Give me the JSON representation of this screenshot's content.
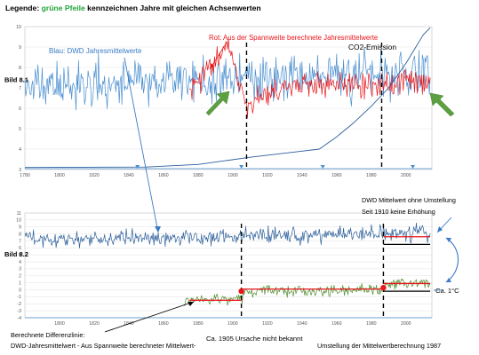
{
  "legend": {
    "prefix": "Legende:",
    "highlight": "grüne Pfeile",
    "rest": "kennzeichnen Jahre mit gleichen Achsenwerten"
  },
  "colors": {
    "blue": "#4a8fd0",
    "dark_blue": "#2c5f9a",
    "red": "#e8161b",
    "green": "#4e8f2e",
    "arrow_green": "#5ca042",
    "black": "#000000",
    "grid": "#d9d9d9",
    "annot_blue": "#3a7bc6"
  },
  "chart_data": [
    {
      "name_label": "Bild 8.1",
      "type": "line",
      "xlim": [
        1780,
        2015
      ],
      "ylim": [
        3,
        10
      ],
      "x_ticks": [
        1780,
        1800,
        1820,
        1840,
        1860,
        1880,
        1900,
        1920,
        1940,
        1960,
        1980,
        2000
      ],
      "y_ticks": [
        3,
        4,
        5,
        6,
        7,
        8,
        9,
        10
      ],
      "annotations": {
        "blue": "Blau: DWD Jahresmittelwerte",
        "red": "Rot: Aus der Spannweite berechnete Jahresmittelwerte",
        "co2": "CO2-Emission"
      },
      "dashed_lines_x": [
        1908,
        1986
      ],
      "green_arrows": [
        "left",
        "right"
      ],
      "series": [
        {
          "name": "Blau: DWD Jahresmittelwerte",
          "color": "#4a8fd0",
          "start": 1780,
          "end": 2014,
          "mean": 7.05,
          "trend": 0.0032,
          "amp": 0.78,
          "seed": 11
        },
        {
          "name": "Rot: Aus der Spannweite berechnete Jahresmittelwerte",
          "color": "#e8161b",
          "start": 1875,
          "end": 2014,
          "mean": 7.1,
          "trend": 0.0,
          "amp": 0.45,
          "seed": 23,
          "shape": [
            [
              1875,
              6.7
            ],
            [
              1885,
              7.9
            ],
            [
              1890,
              8.2
            ],
            [
              1897,
              9.2
            ],
            [
              1905,
              7.3
            ],
            [
              1908,
              6.0
            ],
            [
              1915,
              6.4
            ],
            [
              1930,
              7.1
            ],
            [
              1960,
              7.3
            ],
            [
              1986,
              7.0
            ],
            [
              2000,
              7.4
            ],
            [
              2014,
              7.3
            ]
          ]
        },
        {
          "name": "CO2-Emission",
          "color": "#2c5f9a",
          "points": [
            [
              1780,
              3.1
            ],
            [
              1850,
              3.12
            ],
            [
              1880,
              3.25
            ],
            [
              1910,
              3.6
            ],
            [
              1940,
              3.9
            ],
            [
              1950,
              4.0
            ],
            [
              1960,
              4.6
            ],
            [
              1970,
              5.3
            ],
            [
              1980,
              6.1
            ],
            [
              1990,
              7.0
            ],
            [
              2000,
              8.2
            ],
            [
              2010,
              9.6
            ],
            [
              2014,
              9.95
            ]
          ]
        }
      ]
    },
    {
      "name_label": "Bild 8.2",
      "type": "line",
      "xlim": [
        1780,
        2015
      ],
      "ylim": [
        -4,
        11
      ],
      "x_ticks": [
        1800,
        1820,
        1840,
        1860,
        1880,
        1900,
        1920,
        1940,
        1960,
        1980,
        2000
      ],
      "y_ticks": [
        11,
        10,
        9,
        8,
        7,
        6,
        5,
        4,
        3,
        2,
        1,
        0,
        -1,
        -2,
        -3,
        -4
      ],
      "annotations": {
        "dwd_line1": "DWD Mittelwert ohne Umstellung",
        "dwd_line2": "Seit 1910 keine Erhöhung",
        "ca1c": "Ca. 1°C",
        "diff1": "Berechnete Differenzlinie:",
        "diff2": "DWD-Jahresmittelwert - Aus Spannweite berechneter Mittelwert-",
        "ca1905": "Ca. 1905 Ursache nicht bekannt",
        "umstellung": "Umstellung der Mittelwertberechnung 1987"
      },
      "dashed_lines_x": [
        1905,
        1987
      ],
      "series": [
        {
          "name": "DWD Jahresmittelwert",
          "color": "#2c5f9a",
          "start": 1780,
          "end": 2014,
          "mean": 7.2,
          "trend": 0.0035,
          "amp": 0.8,
          "seed": 37
        },
        {
          "name": "Differenzlinie",
          "color": "#4e8f2e",
          "start": 1872,
          "end": 2014,
          "mean": -0.3,
          "trend": 0.0,
          "amp": 0.55,
          "seed": 51,
          "shape": [
            [
              1872,
              -1.7
            ],
            [
              1890,
              -1.4
            ],
            [
              1905,
              -1.2
            ],
            [
              1908,
              -0.1
            ],
            [
              1930,
              -0.2
            ],
            [
              1986,
              0.0
            ],
            [
              1990,
              0.8
            ],
            [
              2014,
              0.9
            ]
          ]
        }
      ],
      "mean_segments": [
        {
          "color": "#e8161b",
          "x": [
            1875,
            1905
          ],
          "y": -1.5
        },
        {
          "color": "#e8161b",
          "x": [
            1905,
            1987
          ],
          "y": 0.1
        },
        {
          "color": "#e8161b",
          "x": [
            1987,
            2014
          ],
          "y": 0.9
        },
        {
          "color": "#000000",
          "x": [
            1987,
            2014
          ],
          "y": -0.2
        },
        {
          "color": "#e8161b",
          "x": [
            1987,
            2014
          ],
          "y": 7.6
        },
        {
          "color": "#000000",
          "x": [
            1987,
            2014
          ],
          "y": 6.5
        }
      ],
      "red_dots": [
        [
          1905,
          -0.2
        ],
        [
          1987,
          0.3
        ]
      ]
    }
  ]
}
